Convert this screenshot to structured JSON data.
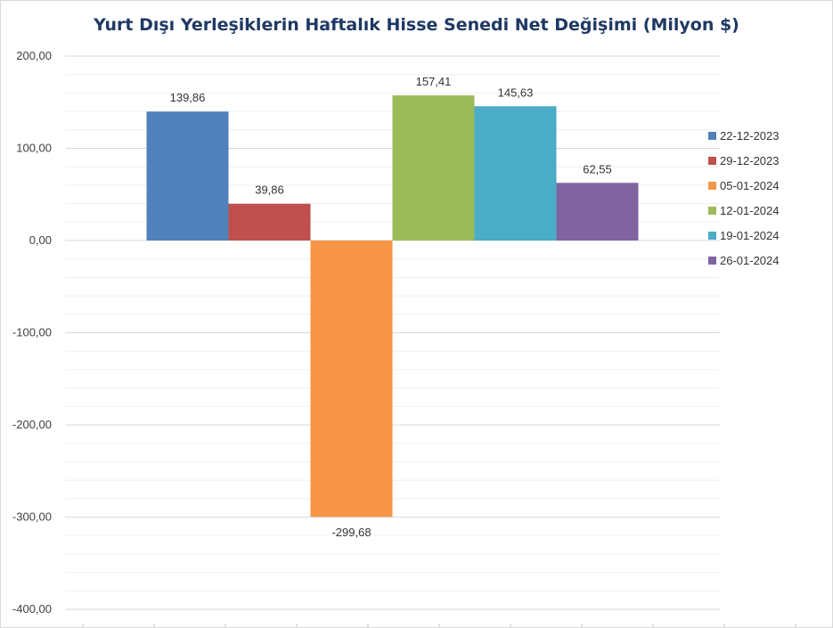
{
  "chart_data": {
    "type": "bar",
    "title": "Yurt Dışı Yerleşiklerin Haftalık Hisse Senedi Net Değişimi (Milyon $)",
    "categories": [
      ""
    ],
    "series": [
      {
        "name": "22-12-2023",
        "value": 139.86,
        "label": "139,86",
        "color": "#4f81bd"
      },
      {
        "name": "29-12-2023",
        "value": 39.86,
        "label": "39,86",
        "color": "#c0504d"
      },
      {
        "name": "05-01-2024",
        "value": -299.68,
        "label": "-299,68",
        "color": "#f79646"
      },
      {
        "name": "12-01-2024",
        "value": 157.41,
        "label": "157,41",
        "color": "#9bbb59"
      },
      {
        "name": "19-01-2024",
        "value": 145.63,
        "label": "145,63",
        "color": "#4bacc6"
      },
      {
        "name": "26-01-2024",
        "value": 62.55,
        "label": "62,55",
        "color": "#8064a2"
      }
    ],
    "ylim": [
      -400,
      200
    ],
    "yticks": [
      {
        "value": 200,
        "label": "200,00"
      },
      {
        "value": 100,
        "label": "100,00"
      },
      {
        "value": 0,
        "label": "0,00"
      },
      {
        "value": -100,
        "label": "-100,00"
      },
      {
        "value": -200,
        "label": "-200,00"
      },
      {
        "value": -300,
        "label": "-300,00"
      },
      {
        "value": -400,
        "label": "-400,00"
      }
    ],
    "grid": true,
    "legend": "right"
  }
}
